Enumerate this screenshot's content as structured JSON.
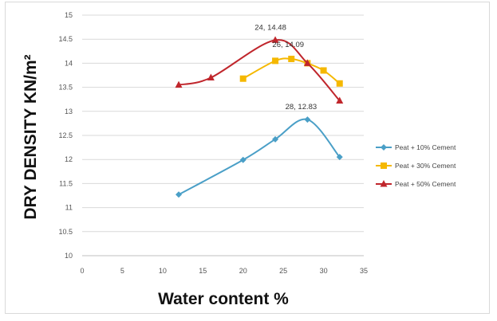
{
  "chart_data": {
    "type": "line",
    "title": "",
    "xlabel": "Water content %",
    "ylabel": "DRY DENSITY KN/m²",
    "xlim": [
      0,
      35
    ],
    "ylim": [
      10,
      15
    ],
    "x_ticks": [
      0,
      5,
      10,
      15,
      20,
      25,
      30,
      35
    ],
    "y_ticks": [
      10,
      10.5,
      11,
      11.5,
      12,
      12.5,
      13,
      13.5,
      14,
      14.5,
      15
    ],
    "grid": "horizontal",
    "legend_position": "right",
    "series": [
      {
        "name": "Peat + 10% Cement",
        "color": "#4a9fc7",
        "marker": "diamond",
        "points": [
          [
            12,
            11.27
          ],
          [
            20,
            11.99
          ],
          [
            24,
            12.42
          ],
          [
            28,
            12.83
          ],
          [
            32,
            12.05
          ]
        ]
      },
      {
        "name": "Peat + 30% Cement",
        "color": "#f5b800",
        "marker": "square",
        "points": [
          [
            20,
            13.68
          ],
          [
            24,
            14.05
          ],
          [
            26,
            14.09
          ],
          [
            28,
            14.0
          ],
          [
            30,
            13.85
          ],
          [
            32,
            13.58
          ]
        ]
      },
      {
        "name": "Peat + 50% Cement",
        "color": "#c0262c",
        "marker": "triangle",
        "points": [
          [
            12,
            13.55
          ],
          [
            16,
            13.7
          ],
          [
            24,
            14.48
          ],
          [
            28,
            14.0
          ],
          [
            32,
            13.22
          ]
        ]
      }
    ],
    "annotations": [
      {
        "text": "24, 14.48",
        "x": 24,
        "y": 14.48
      },
      {
        "text": "26, 14.09",
        "x": 26,
        "y": 14.09
      },
      {
        "text": "28, 12.83",
        "x": 28,
        "y": 12.83
      }
    ]
  }
}
